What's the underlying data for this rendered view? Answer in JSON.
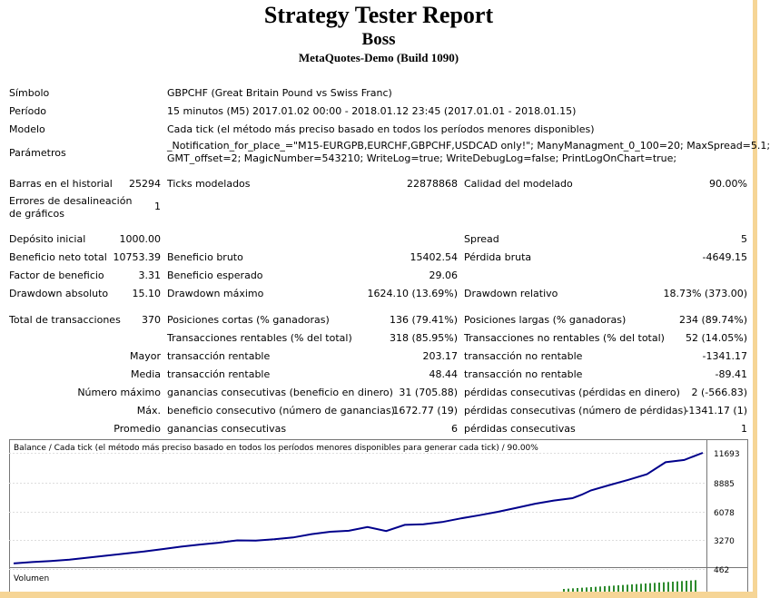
{
  "report": {
    "title": "Strategy Tester Report",
    "name": "Boss",
    "server": "MetaQuotes-Demo (Build 1090)"
  },
  "info": {
    "symbol_label": "Símbolo",
    "symbol_value": "GBPCHF (Great Britain Pound vs Swiss Franc)",
    "period_label": "Período",
    "period_value": "15 minutos (M5) 2017.01.02 00:00 - 2018.01.12 23:45 (2017.01.01 - 2018.01.15)",
    "model_label": "Modelo",
    "model_value": "Cada tick (el método más preciso basado en todos los períodos menores disponibles)",
    "params_label": "Parámetros",
    "params_line1": "_Notification_for_place_=\"M15-EURGPB,EURCHF,GBPCHF,USDCAD only!\"; ManyManagment_0_100=20; MaxSpread=5.1;",
    "params_line2": "GMT_offset=2; MagicNumber=543210; WriteLog=true; WriteDebugLog=false; PrintLogOnChart=true;"
  },
  "stats": {
    "bars_label": "Barras en el historial",
    "bars_value": "25294",
    "ticks_label": "Ticks modelados",
    "ticks_value": "22878868",
    "quality_label": "Calidad del modelado",
    "quality_value": "90.00%",
    "errors_label_1": "Errores de desalineación",
    "errors_label_2": "de gráficos",
    "errors_value": "1",
    "deposit_label": "Depósito inicial",
    "deposit_value": "1000.00",
    "spread_label": "Spread",
    "spread_value": "5",
    "net_label": "Beneficio neto total",
    "net_value": "10753.39",
    "gross_profit_label": "Beneficio bruto",
    "gross_profit_value": "15402.54",
    "gross_loss_label": "Pérdida bruta",
    "gross_loss_value": "-4649.15",
    "pf_label": "Factor de beneficio",
    "pf_value": "3.31",
    "expected_label": "Beneficio esperado",
    "expected_value": "29.06",
    "dd_abs_label": "Drawdown absoluto",
    "dd_abs_value": "15.10",
    "dd_max_label": "Drawdown máximo",
    "dd_max_value": "1624.10 (13.69%)",
    "dd_rel_label": "Drawdown relativo",
    "dd_rel_value": "18.73% (373.00)",
    "trades_label": "Total de transacciones",
    "trades_value": "370",
    "short_label": "Posiciones cortas (% ganadoras)",
    "short_value": "136 (79.41%)",
    "long_label": "Posiciones largas (% ganadoras)",
    "long_value": "234 (89.74%)",
    "profit_trades_label": "Transacciones rentables (% del total)",
    "profit_trades_value": "318 (85.95%)",
    "loss_trades_label": "Transacciones no rentables (% del total)",
    "loss_trades_value": "52 (14.05%)",
    "largest_prefix": "Mayor",
    "largest_profit_label": "transacción rentable",
    "largest_profit_value": "203.17",
    "largest_loss_label": "transacción no rentable",
    "largest_loss_value": "-1341.17",
    "avg_prefix": "Media",
    "avg_profit_label": "transacción rentable",
    "avg_profit_value": "48.44",
    "avg_loss_label": "transacción no rentable",
    "avg_loss_value": "-89.41",
    "max_prefix": "Número máximo",
    "max_cons_wins_label": "ganancias consecutivas (beneficio en dinero)",
    "max_cons_wins_value": "31 (705.88)",
    "max_cons_losses_label": "pérdidas consecutivas (pérdidas en dinero)",
    "max_cons_losses_value": "2 (-566.83)",
    "maximal_prefix": "Máx.",
    "maximal_profit_label": "beneficio consecutivo (número de ganancias)",
    "maximal_profit_value": "1672.77 (19)",
    "maximal_loss_label": "pérdidas consecutivas (número de pérdidas)",
    "maximal_loss_value": "-1341.17 (1)",
    "average_prefix": "Promedio",
    "avg_cons_wins_label": "ganancias consecutivas",
    "avg_cons_wins_value": "6",
    "avg_cons_losses_label": "pérdidas consecutivas",
    "avg_cons_losses_value": "1"
  },
  "chart_data": {
    "type": "line",
    "title": "Balance / Cada tick (el método más preciso basado en todos los períodos menores disponibles para generar cada tick)  / 90.00%",
    "volume_label": "Volumen",
    "y_ticks": [
      "11693",
      "8885",
      "6078",
      "3270",
      "462"
    ],
    "ylim": [
      462,
      12500
    ],
    "x": [
      0,
      10,
      20,
      30,
      40,
      50,
      60,
      70,
      80,
      90,
      100,
      110,
      120,
      130,
      140,
      150,
      160,
      170,
      180,
      190,
      200,
      210,
      220,
      230,
      240,
      250,
      260,
      270,
      280,
      290,
      300,
      305,
      310,
      320,
      330,
      340,
      350,
      360,
      370
    ],
    "series": [
      {
        "values": [
          1000,
          1130,
          1230,
          1370,
          1560,
          1750,
          1950,
          2150,
          2380,
          2620,
          2820,
          3000,
          3230,
          3200,
          3330,
          3510,
          3830,
          4060,
          4160,
          4520,
          4130,
          4730,
          4780,
          5000,
          5350,
          5660,
          5990,
          6380,
          6770,
          7080,
          7310,
          7650,
          8060,
          8580,
          9080,
          9620,
          10780,
          11000,
          11693
        ]
      }
    ],
    "volume_bars": 30,
    "color_balance": "#00008b",
    "color_volume": "#2e8b2e"
  }
}
